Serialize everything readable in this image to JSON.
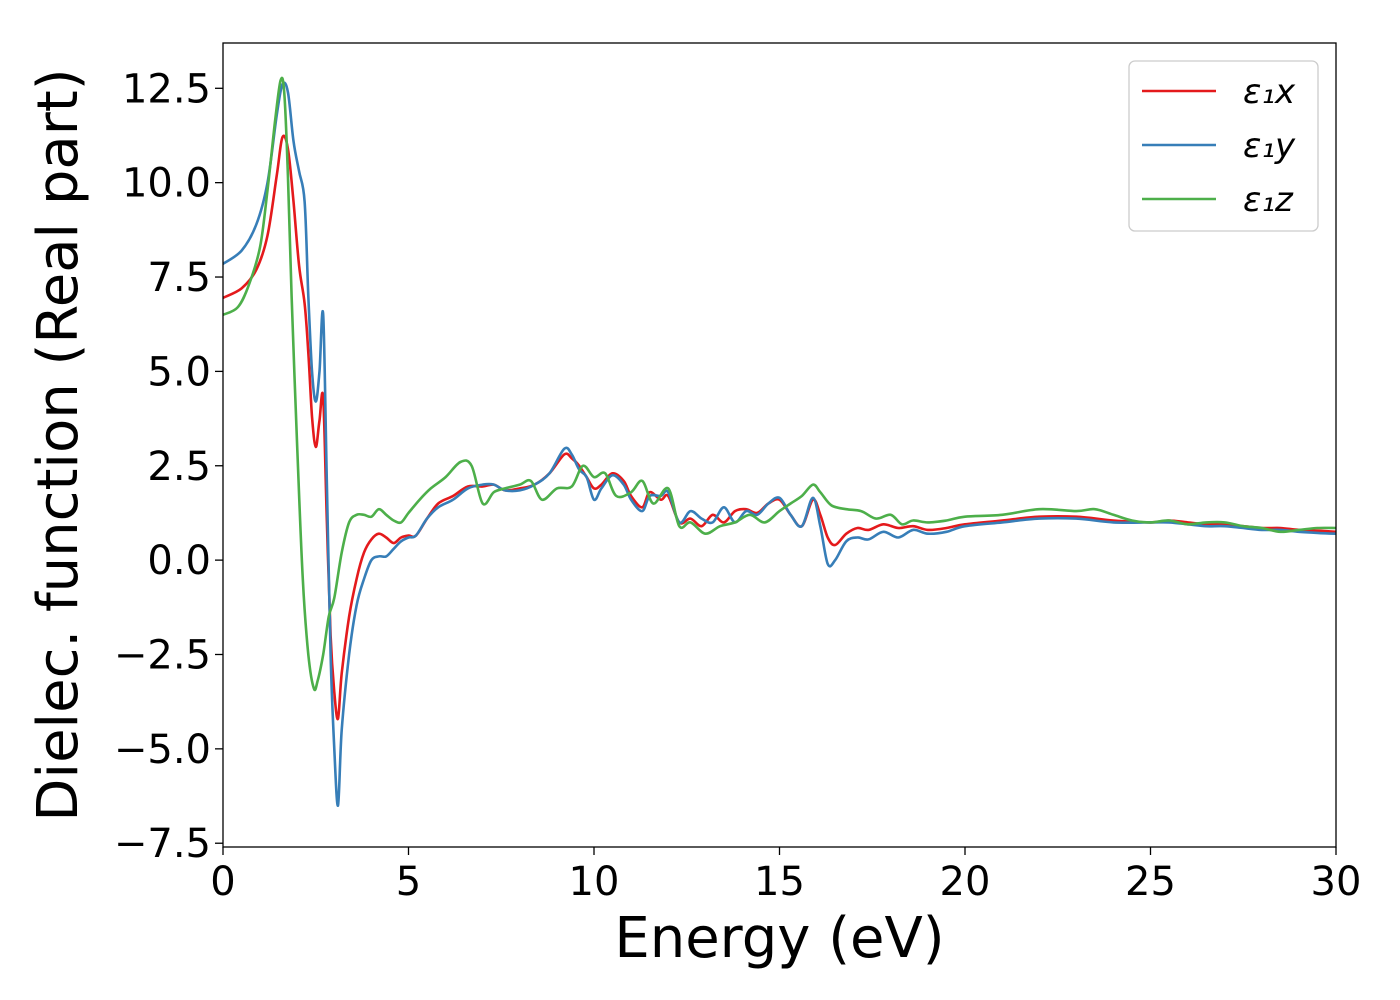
{
  "chart_data": {
    "type": "line",
    "xlabel": "Energy (eV)",
    "ylabel": "Dielec. function (Real part)",
    "xlim": [
      0,
      30
    ],
    "ylim": [
      -7.6,
      13.7
    ],
    "xticks": [
      0,
      5,
      10,
      15,
      20,
      25,
      30
    ],
    "xtick_labels": [
      "0",
      "5",
      "10",
      "15",
      "20",
      "25",
      "30"
    ],
    "yticks": [
      -7.5,
      -5.0,
      -2.5,
      0.0,
      2.5,
      5.0,
      7.5,
      10.0,
      12.5
    ],
    "ytick_labels": [
      "−7.5",
      "−5.0",
      "−2.5",
      "0.0",
      "2.5",
      "5.0",
      "7.5",
      "10.0",
      "12.5"
    ],
    "grid": false,
    "legend_position": "top-right",
    "series": [
      {
        "name": "ε₁x",
        "color": "#e41a1c",
        "x": [
          0,
          0.5,
          0.9,
          1.2,
          1.45,
          1.6,
          1.75,
          1.9,
          2.05,
          2.2,
          2.3,
          2.4,
          2.5,
          2.6,
          2.7,
          2.8,
          2.9,
          3.0,
          3.1,
          3.2,
          3.4,
          3.6,
          3.8,
          4.0,
          4.2,
          4.4,
          4.6,
          4.8,
          5.0,
          5.2,
          5.5,
          5.8,
          6.2,
          6.6,
          7.0,
          7.3,
          7.6,
          8.0,
          8.4,
          8.8,
          9.2,
          9.4,
          9.6,
          9.8,
          10.0,
          10.2,
          10.5,
          10.8,
          11.0,
          11.3,
          11.5,
          11.8,
          12.0,
          12.3,
          12.6,
          12.9,
          13.2,
          13.5,
          13.8,
          14.1,
          14.4,
          14.7,
          15.0,
          15.3,
          15.6,
          15.9,
          16.1,
          16.3,
          16.5,
          16.8,
          17.1,
          17.4,
          17.8,
          18.2,
          18.6,
          19.0,
          19.5,
          20,
          21,
          22,
          23,
          24,
          25,
          25.5,
          26,
          26.5,
          27,
          27.5,
          28,
          28.5,
          29,
          29.5,
          30
        ],
        "y": [
          6.95,
          7.2,
          7.7,
          8.6,
          10.2,
          11.2,
          10.9,
          9.5,
          7.8,
          6.8,
          5.5,
          3.8,
          3.0,
          3.7,
          4.3,
          1.0,
          -2.0,
          -3.5,
          -4.2,
          -3.0,
          -1.5,
          -0.5,
          0.2,
          0.55,
          0.7,
          0.6,
          0.45,
          0.6,
          0.65,
          0.65,
          1.1,
          1.5,
          1.7,
          1.95,
          1.95,
          2.0,
          1.85,
          1.9,
          2.0,
          2.3,
          2.8,
          2.7,
          2.5,
          2.2,
          1.9,
          2.0,
          2.3,
          2.1,
          1.7,
          1.4,
          1.8,
          1.6,
          1.7,
          1.0,
          1.1,
          0.9,
          1.2,
          1.0,
          1.3,
          1.35,
          1.25,
          1.5,
          1.6,
          1.2,
          0.9,
          1.6,
          1.2,
          0.6,
          0.4,
          0.7,
          0.85,
          0.8,
          0.95,
          0.85,
          0.9,
          0.8,
          0.85,
          0.95,
          1.05,
          1.15,
          1.15,
          1.05,
          1.0,
          1.05,
          1.0,
          0.95,
          0.95,
          0.9,
          0.85,
          0.85,
          0.8,
          0.78,
          0.75
        ]
      },
      {
        "name": "ε₁y",
        "color": "#377eb8",
        "x": [
          0,
          0.5,
          0.9,
          1.2,
          1.45,
          1.6,
          1.75,
          1.9,
          2.05,
          2.2,
          2.3,
          2.4,
          2.5,
          2.6,
          2.7,
          2.8,
          2.9,
          3.0,
          3.1,
          3.2,
          3.4,
          3.6,
          3.8,
          4.0,
          4.2,
          4.4,
          4.6,
          4.8,
          5.0,
          5.2,
          5.5,
          5.8,
          6.2,
          6.6,
          7.0,
          7.3,
          7.6,
          8.0,
          8.4,
          8.8,
          9.2,
          9.4,
          9.6,
          9.8,
          10.0,
          10.2,
          10.5,
          10.8,
          11.0,
          11.3,
          11.5,
          11.8,
          12.0,
          12.3,
          12.6,
          12.9,
          13.2,
          13.5,
          13.8,
          14.1,
          14.4,
          14.7,
          15.0,
          15.3,
          15.6,
          15.9,
          16.1,
          16.3,
          16.5,
          16.8,
          17.1,
          17.4,
          17.8,
          18.2,
          18.6,
          19.0,
          19.5,
          20,
          21,
          22,
          23,
          24,
          25,
          25.5,
          26,
          26.5,
          27,
          27.5,
          28,
          28.5,
          29,
          29.5,
          30
        ],
        "y": [
          7.85,
          8.2,
          8.9,
          10.0,
          11.8,
          12.6,
          12.4,
          11.1,
          10.3,
          9.5,
          7.0,
          5.0,
          4.2,
          5.0,
          6.5,
          2.0,
          -2.5,
          -5.0,
          -6.5,
          -4.5,
          -2.5,
          -1.2,
          -0.5,
          0.0,
          0.1,
          0.1,
          0.3,
          0.5,
          0.6,
          0.65,
          1.1,
          1.4,
          1.6,
          1.9,
          2.0,
          2.0,
          1.85,
          1.85,
          2.0,
          2.3,
          2.95,
          2.8,
          2.4,
          2.2,
          1.6,
          1.9,
          2.25,
          2.0,
          1.6,
          1.3,
          1.7,
          1.7,
          1.8,
          1.0,
          1.3,
          1.1,
          1.0,
          1.4,
          1.0,
          1.3,
          1.2,
          1.5,
          1.65,
          1.2,
          0.9,
          1.65,
          0.9,
          -0.1,
          0.0,
          0.5,
          0.6,
          0.55,
          0.75,
          0.6,
          0.8,
          0.7,
          0.75,
          0.9,
          1.0,
          1.1,
          1.1,
          1.0,
          1.0,
          1.0,
          0.95,
          0.9,
          0.9,
          0.85,
          0.8,
          0.8,
          0.75,
          0.72,
          0.7
        ]
      },
      {
        "name": "ε₁z",
        "color": "#4daf4a",
        "x": [
          0,
          0.4,
          0.7,
          1.0,
          1.2,
          1.4,
          1.55,
          1.65,
          1.75,
          1.85,
          2.0,
          2.15,
          2.3,
          2.45,
          2.55,
          2.7,
          2.85,
          3.0,
          3.2,
          3.4,
          3.6,
          3.8,
          4.0,
          4.2,
          4.4,
          4.6,
          4.8,
          5.0,
          5.3,
          5.6,
          6.0,
          6.4,
          6.7,
          7.0,
          7.3,
          7.6,
          8.0,
          8.3,
          8.6,
          9.0,
          9.4,
          9.7,
          10.0,
          10.3,
          10.6,
          11.0,
          11.3,
          11.6,
          12.0,
          12.3,
          12.6,
          13.0,
          13.4,
          13.8,
          14.2,
          14.6,
          15.0,
          15.3,
          15.6,
          15.9,
          16.1,
          16.4,
          16.8,
          17.2,
          17.6,
          18.0,
          18.3,
          18.6,
          19.0,
          19.5,
          20,
          21,
          22,
          23,
          23.5,
          24,
          24.5,
          25,
          25.5,
          26,
          26.5,
          27,
          27.5,
          28,
          28.5,
          29,
          29.5,
          30
        ],
        "y": [
          6.5,
          6.7,
          7.3,
          8.3,
          9.8,
          11.6,
          12.7,
          12.4,
          10.2,
          7.0,
          3.0,
          -0.5,
          -2.5,
          -3.4,
          -3.2,
          -2.5,
          -1.5,
          -1.0,
          0.2,
          1.0,
          1.2,
          1.2,
          1.15,
          1.35,
          1.2,
          1.05,
          1.0,
          1.25,
          1.6,
          1.9,
          2.2,
          2.6,
          2.5,
          1.5,
          1.8,
          1.9,
          2.0,
          2.1,
          1.6,
          1.9,
          1.95,
          2.5,
          2.2,
          2.3,
          1.7,
          1.8,
          2.1,
          1.5,
          1.9,
          0.9,
          1.0,
          0.7,
          0.9,
          1.0,
          1.2,
          1.0,
          1.3,
          1.5,
          1.7,
          2.0,
          1.8,
          1.45,
          1.35,
          1.3,
          1.1,
          1.2,
          0.95,
          1.05,
          1.0,
          1.05,
          1.15,
          1.2,
          1.35,
          1.3,
          1.35,
          1.2,
          1.05,
          1.0,
          1.05,
          0.95,
          1.0,
          1.0,
          0.9,
          0.85,
          0.75,
          0.8,
          0.85,
          0.85
        ]
      }
    ]
  }
}
